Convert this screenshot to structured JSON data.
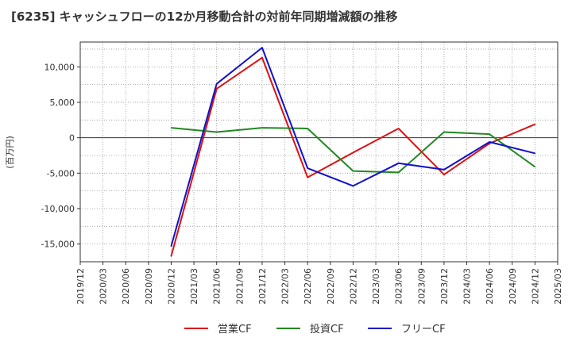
{
  "chart_data": {
    "type": "line",
    "title": "[6235]  キャッシュフローの12か月移動合計の対前年同期増減額の推移",
    "xlabel": "",
    "ylabel": "(百万円)",
    "ylim": [
      -17500,
      13500
    ],
    "grid": true,
    "legend_position": "bottom",
    "x": [
      "2019/12",
      "2020/03",
      "2020/06",
      "2020/09",
      "2020/12",
      "2021/03",
      "2021/06",
      "2021/09",
      "2021/12",
      "2022/03",
      "2022/06",
      "2022/09",
      "2022/12",
      "2023/03",
      "2023/06",
      "2023/09",
      "2023/12",
      "2024/03",
      "2024/06",
      "2024/09",
      "2024/12",
      "2025/03"
    ],
    "y_ticks": [
      {
        "value": 10000,
        "label": "10,000"
      },
      {
        "value": 5000,
        "label": "5,000"
      },
      {
        "value": 0,
        "label": "0"
      },
      {
        "value": -5000,
        "label": "-5,000"
      },
      {
        "value": -10000,
        "label": "-10,000"
      },
      {
        "value": -15000,
        "label": "-15,000"
      }
    ],
    "series": [
      {
        "name": "営業CF",
        "color": "#dd1111",
        "values": [
          null,
          null,
          null,
          null,
          -16700,
          null,
          6900,
          null,
          11300,
          null,
          -5600,
          null,
          -2100,
          null,
          1300,
          null,
          -5200,
          null,
          -800,
          null,
          1900,
          null
        ]
      },
      {
        "name": "投資CF",
        "color": "#228822",
        "values": [
          null,
          null,
          null,
          null,
          1400,
          null,
          800,
          null,
          1400,
          null,
          1300,
          null,
          -4700,
          null,
          -4900,
          null,
          800,
          null,
          500,
          null,
          -4100,
          null
        ]
      },
      {
        "name": "フリーCF",
        "color": "#1111cc",
        "values": [
          null,
          null,
          null,
          null,
          -15300,
          null,
          7600,
          null,
          12700,
          null,
          -4300,
          null,
          -6800,
          null,
          -3600,
          null,
          -4500,
          null,
          -600,
          null,
          -2200,
          null
        ]
      }
    ]
  }
}
